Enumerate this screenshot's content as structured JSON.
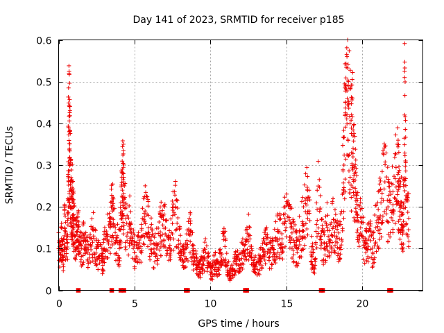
{
  "chart_data": {
    "type": "scatter",
    "title": "Day 141 of 2023, SRMTID for receiver p185",
    "xlabel": "GPS time / hours",
    "ylabel": "SRMTID / TECUs",
    "xlim": [
      0,
      24
    ],
    "ylim": [
      0,
      0.6
    ],
    "x_ticks": [
      0,
      5,
      10,
      15,
      20
    ],
    "x_tick_labels": [
      "0",
      "5",
      "10",
      "15",
      "20"
    ],
    "y_ticks": [
      0,
      0.1,
      0.2,
      0.3,
      0.4,
      0.5,
      0.6
    ],
    "y_tick_labels": [
      "0",
      "0.1",
      "0.2",
      "0.3",
      "0.4",
      "0.5",
      "0.6"
    ],
    "grid": true,
    "marker": "+",
    "color": "#ee0000",
    "series": [
      {
        "name": "SRMTID",
        "points": [
          [
            0.0,
            0.1
          ],
          [
            0.1,
            0.09
          ],
          [
            0.2,
            0.12
          ],
          [
            0.3,
            0.08
          ],
          [
            0.4,
            0.15
          ],
          [
            0.5,
            0.1
          ],
          [
            0.6,
            0.13
          ],
          [
            0.65,
            0.39
          ],
          [
            0.7,
            0.38
          ],
          [
            0.72,
            0.34
          ],
          [
            0.75,
            0.3
          ],
          [
            0.8,
            0.24
          ],
          [
            0.85,
            0.2
          ],
          [
            0.9,
            0.22
          ],
          [
            0.95,
            0.18
          ],
          [
            1.0,
            0.16
          ],
          [
            1.1,
            0.13
          ],
          [
            1.2,
            0.12
          ],
          [
            1.3,
            0.15
          ],
          [
            1.4,
            0.11
          ],
          [
            1.5,
            0.1
          ],
          [
            1.7,
            0.12
          ],
          [
            1.9,
            0.09
          ],
          [
            2.1,
            0.11
          ],
          [
            2.3,
            0.13
          ],
          [
            2.5,
            0.1
          ],
          [
            2.7,
            0.08
          ],
          [
            2.9,
            0.07
          ],
          [
            3.0,
            0.1
          ],
          [
            3.2,
            0.13
          ],
          [
            3.4,
            0.15
          ],
          [
            3.5,
            0.2
          ],
          [
            3.6,
            0.17
          ],
          [
            3.8,
            0.12
          ],
          [
            4.0,
            0.1
          ],
          [
            4.1,
            0.18
          ],
          [
            4.2,
            0.24
          ],
          [
            4.25,
            0.26
          ],
          [
            4.3,
            0.22
          ],
          [
            4.5,
            0.13
          ],
          [
            4.7,
            0.16
          ],
          [
            4.9,
            0.11
          ],
          [
            5.1,
            0.08
          ],
          [
            5.3,
            0.1
          ],
          [
            5.5,
            0.13
          ],
          [
            5.7,
            0.19
          ],
          [
            5.9,
            0.15
          ],
          [
            6.1,
            0.12
          ],
          [
            6.3,
            0.09
          ],
          [
            6.5,
            0.11
          ],
          [
            6.7,
            0.14
          ],
          [
            6.9,
            0.17
          ],
          [
            7.1,
            0.13
          ],
          [
            7.3,
            0.1
          ],
          [
            7.5,
            0.16
          ],
          [
            7.7,
            0.2
          ],
          [
            7.9,
            0.12
          ],
          [
            8.1,
            0.09
          ],
          [
            8.3,
            0.07
          ],
          [
            8.5,
            0.11
          ],
          [
            8.7,
            0.14
          ],
          [
            8.9,
            0.08
          ],
          [
            9.1,
            0.06
          ],
          [
            9.3,
            0.05
          ],
          [
            9.5,
            0.07
          ],
          [
            9.7,
            0.09
          ],
          [
            9.9,
            0.06
          ],
          [
            10.1,
            0.04
          ],
          [
            10.3,
            0.07
          ],
          [
            10.5,
            0.05
          ],
          [
            10.7,
            0.08
          ],
          [
            10.9,
            0.13
          ],
          [
            11.1,
            0.06
          ],
          [
            11.3,
            0.04
          ],
          [
            11.5,
            0.05
          ],
          [
            11.7,
            0.07
          ],
          [
            11.9,
            0.06
          ],
          [
            12.1,
            0.09
          ],
          [
            12.3,
            0.11
          ],
          [
            12.5,
            0.13
          ],
          [
            12.7,
            0.08
          ],
          [
            12.9,
            0.06
          ],
          [
            13.1,
            0.05
          ],
          [
            13.3,
            0.07
          ],
          [
            13.5,
            0.09
          ],
          [
            13.7,
            0.11
          ],
          [
            13.9,
            0.08
          ],
          [
            14.1,
            0.1
          ],
          [
            14.3,
            0.12
          ],
          [
            14.5,
            0.14
          ],
          [
            14.7,
            0.11
          ],
          [
            14.9,
            0.16
          ],
          [
            15.1,
            0.21
          ],
          [
            15.3,
            0.15
          ],
          [
            15.5,
            0.12
          ],
          [
            15.7,
            0.1
          ],
          [
            15.9,
            0.13
          ],
          [
            16.1,
            0.16
          ],
          [
            16.3,
            0.22
          ],
          [
            16.5,
            0.19
          ],
          [
            16.7,
            0.08
          ],
          [
            16.9,
            0.06
          ],
          [
            17.1,
            0.25
          ],
          [
            17.3,
            0.13
          ],
          [
            17.5,
            0.1
          ],
          [
            17.7,
            0.15
          ],
          [
            17.9,
            0.12
          ],
          [
            18.1,
            0.17
          ],
          [
            18.3,
            0.13
          ],
          [
            18.5,
            0.1
          ],
          [
            18.7,
            0.23
          ],
          [
            18.8,
            0.3
          ],
          [
            18.9,
            0.45
          ],
          [
            19.0,
            0.56
          ],
          [
            19.05,
            0.6
          ],
          [
            19.1,
            0.5
          ],
          [
            19.2,
            0.4
          ],
          [
            19.3,
            0.33
          ],
          [
            19.4,
            0.37
          ],
          [
            19.5,
            0.28
          ],
          [
            19.6,
            0.22
          ],
          [
            19.7,
            0.18
          ],
          [
            19.9,
            0.15
          ],
          [
            20.1,
            0.12
          ],
          [
            20.3,
            0.1
          ],
          [
            20.5,
            0.13
          ],
          [
            20.7,
            0.09
          ],
          [
            20.9,
            0.15
          ],
          [
            21.1,
            0.17
          ],
          [
            21.3,
            0.22
          ],
          [
            21.5,
            0.26
          ],
          [
            21.7,
            0.2
          ],
          [
            21.9,
            0.23
          ],
          [
            22.1,
            0.19
          ],
          [
            22.3,
            0.35
          ],
          [
            22.4,
            0.25
          ],
          [
            22.5,
            0.17
          ],
          [
            22.6,
            0.2
          ],
          [
            22.7,
            0.14
          ],
          [
            22.8,
            0.42
          ],
          [
            22.85,
            0.31
          ],
          [
            22.9,
            0.16
          ]
        ]
      }
    ],
    "zero_points_x": [
      1.3,
      3.5,
      4.1,
      4.3,
      8.4,
      8.5,
      12.3,
      12.4,
      17.3,
      17.4,
      21.8,
      21.9
    ]
  }
}
